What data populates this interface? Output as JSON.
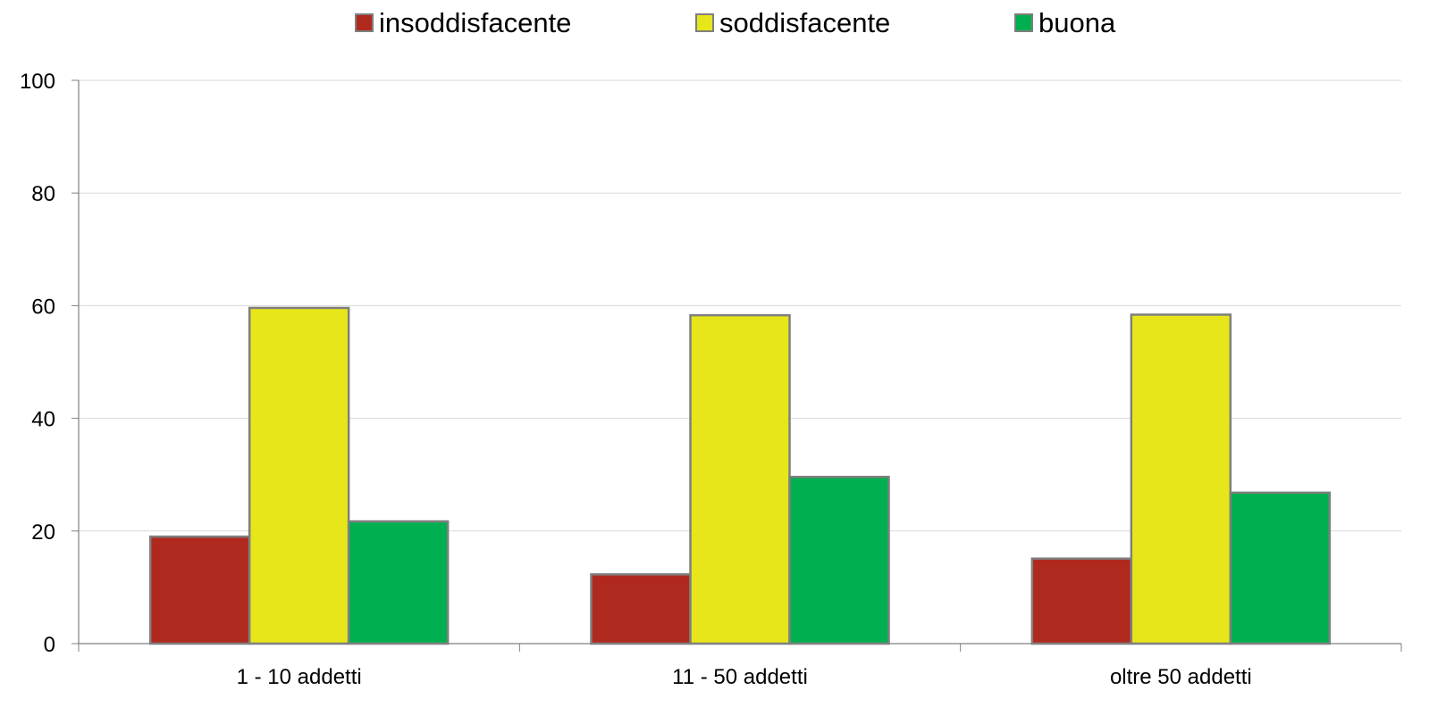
{
  "chart_data": {
    "type": "bar",
    "categories": [
      "1 - 10 addetti",
      "11 - 50 addetti",
      "oltre 50 addetti"
    ],
    "series": [
      {
        "name": "insoddisfacente",
        "values": [
          19.0,
          12.3,
          15.1
        ]
      },
      {
        "name": "soddisfacente",
        "values": [
          59.6,
          58.3,
          58.4
        ]
      },
      {
        "name": "buona",
        "values": [
          21.7,
          29.6,
          26.8
        ]
      }
    ],
    "ylim": [
      0,
      100
    ],
    "yticks": [
      "0",
      "20",
      "40",
      "60",
      "80",
      "100"
    ],
    "grid": true,
    "legend_position": "top-center",
    "colors": {
      "insoddisfacente": "#B0291F",
      "soddisfacente": "#E6E61A",
      "buona": "#00B050",
      "bar_border": "#7F7F7F",
      "gridline": "#D9D9D9",
      "axis": "#808080"
    }
  }
}
